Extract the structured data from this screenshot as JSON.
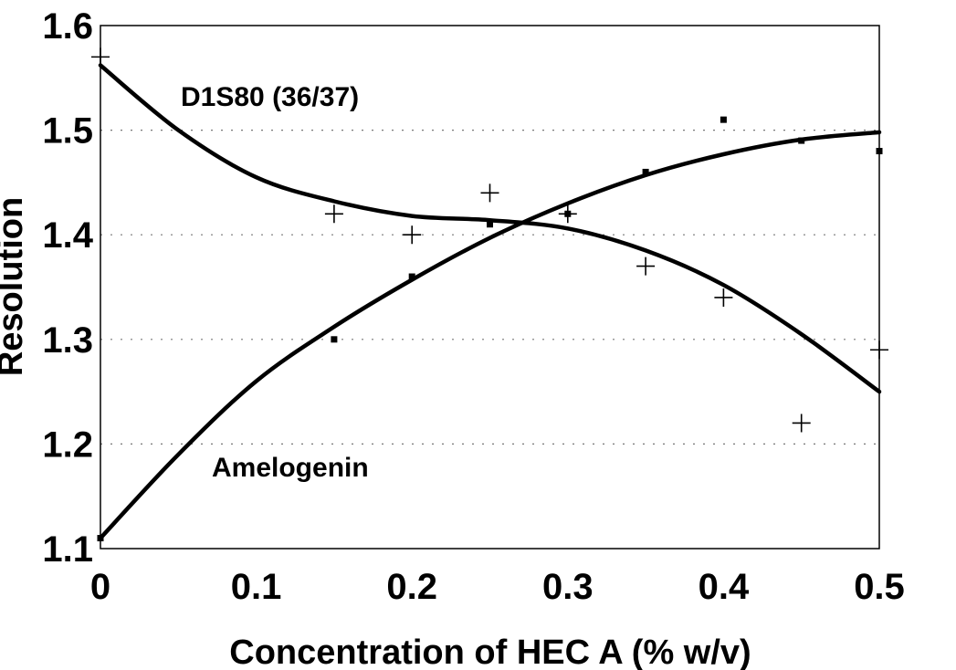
{
  "chart_data": {
    "type": "scatter",
    "title": "",
    "xlabel": "Concentration of HEC A (% w/v)",
    "ylabel": "Resolution",
    "xlim": [
      0,
      0.5
    ],
    "ylim": [
      1.1,
      1.6
    ],
    "x_ticks": [
      "0",
      "0.1",
      "0.2",
      "0.3",
      "0.4",
      "0.5"
    ],
    "y_ticks": [
      "1.1",
      "1.2",
      "1.3",
      "1.4",
      "1.5",
      "1.6"
    ],
    "grid": "dotted horizontal",
    "series": [
      {
        "name": "D1S80 (36/37)",
        "marker": "plus",
        "points": [
          {
            "x": 0,
            "y": 1.57
          },
          {
            "x": 0.15,
            "y": 1.42
          },
          {
            "x": 0.2,
            "y": 1.4
          },
          {
            "x": 0.25,
            "y": 1.44
          },
          {
            "x": 0.3,
            "y": 1.42
          },
          {
            "x": 0.35,
            "y": 1.37
          },
          {
            "x": 0.4,
            "y": 1.34
          },
          {
            "x": 0.45,
            "y": 1.22
          },
          {
            "x": 0.5,
            "y": 1.29
          }
        ],
        "fit": [
          {
            "x": 0,
            "y": 1.562
          },
          {
            "x": 0.05,
            "y": 1.5
          },
          {
            "x": 0.1,
            "y": 1.455
          },
          {
            "x": 0.15,
            "y": 1.432
          },
          {
            "x": 0.2,
            "y": 1.418
          },
          {
            "x": 0.25,
            "y": 1.414
          },
          {
            "x": 0.3,
            "y": 1.406
          },
          {
            "x": 0.35,
            "y": 1.385
          },
          {
            "x": 0.4,
            "y": 1.352
          },
          {
            "x": 0.45,
            "y": 1.305
          },
          {
            "x": 0.5,
            "y": 1.25
          }
        ]
      },
      {
        "name": "Amelogenin",
        "marker": "square",
        "points": [
          {
            "x": 0,
            "y": 1.11
          },
          {
            "x": 0.15,
            "y": 1.3
          },
          {
            "x": 0.2,
            "y": 1.36
          },
          {
            "x": 0.25,
            "y": 1.41
          },
          {
            "x": 0.3,
            "y": 1.42
          },
          {
            "x": 0.35,
            "y": 1.46
          },
          {
            "x": 0.4,
            "y": 1.51
          },
          {
            "x": 0.45,
            "y": 1.49
          },
          {
            "x": 0.5,
            "y": 1.48
          }
        ],
        "fit": [
          {
            "x": 0,
            "y": 1.11
          },
          {
            "x": 0.05,
            "y": 1.19
          },
          {
            "x": 0.1,
            "y": 1.26
          },
          {
            "x": 0.15,
            "y": 1.312
          },
          {
            "x": 0.2,
            "y": 1.357
          },
          {
            "x": 0.25,
            "y": 1.397
          },
          {
            "x": 0.3,
            "y": 1.43
          },
          {
            "x": 0.35,
            "y": 1.457
          },
          {
            "x": 0.4,
            "y": 1.477
          },
          {
            "x": 0.45,
            "y": 1.491
          },
          {
            "x": 0.5,
            "y": 1.498
          }
        ]
      }
    ]
  }
}
